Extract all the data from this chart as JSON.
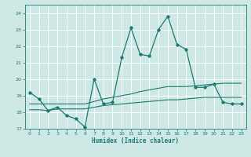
{
  "title": "",
  "xlabel": "Humidex (Indice chaleur)",
  "background_color": "#cde8e5",
  "grid_color": "#b0d4d0",
  "line_color": "#1a7a6e",
  "xlim": [
    -0.5,
    23.5
  ],
  "ylim": [
    17.0,
    24.5
  ],
  "yticks": [
    17,
    18,
    19,
    20,
    21,
    22,
    23,
    24
  ],
  "xticks": [
    0,
    1,
    2,
    3,
    4,
    5,
    6,
    7,
    8,
    9,
    10,
    11,
    12,
    13,
    14,
    15,
    16,
    17,
    18,
    19,
    20,
    21,
    22,
    23
  ],
  "line1_x": [
    0,
    1,
    2,
    3,
    4,
    5,
    6,
    7,
    8,
    9,
    10,
    11,
    12,
    13,
    14,
    15,
    16,
    17,
    18,
    19,
    20,
    21,
    22,
    23
  ],
  "line1_y": [
    19.2,
    18.8,
    18.1,
    18.3,
    17.8,
    17.6,
    17.1,
    20.0,
    18.5,
    18.6,
    21.3,
    23.1,
    21.5,
    21.4,
    23.0,
    23.8,
    22.1,
    21.8,
    19.5,
    19.5,
    19.7,
    18.6,
    18.5,
    18.5
  ],
  "line2_x": [
    0,
    1,
    2,
    3,
    4,
    5,
    6,
    7,
    8,
    9,
    10,
    11,
    12,
    13,
    14,
    15,
    16,
    17,
    18,
    19,
    20,
    21,
    22,
    23
  ],
  "line2_y": [
    18.15,
    18.15,
    18.1,
    18.2,
    18.2,
    18.2,
    18.2,
    18.3,
    18.4,
    18.45,
    18.5,
    18.55,
    18.6,
    18.65,
    18.7,
    18.75,
    18.75,
    18.8,
    18.85,
    18.9,
    18.9,
    18.9,
    18.9,
    18.9
  ],
  "line3_x": [
    0,
    1,
    2,
    3,
    4,
    5,
    6,
    7,
    8,
    9,
    10,
    11,
    12,
    13,
    14,
    15,
    16,
    17,
    18,
    19,
    20,
    21,
    22,
    23
  ],
  "line3_y": [
    18.5,
    18.5,
    18.5,
    18.5,
    18.5,
    18.5,
    18.5,
    18.65,
    18.8,
    18.9,
    19.0,
    19.1,
    19.25,
    19.35,
    19.45,
    19.55,
    19.55,
    19.55,
    19.6,
    19.65,
    19.7,
    19.75,
    19.75,
    19.75
  ]
}
